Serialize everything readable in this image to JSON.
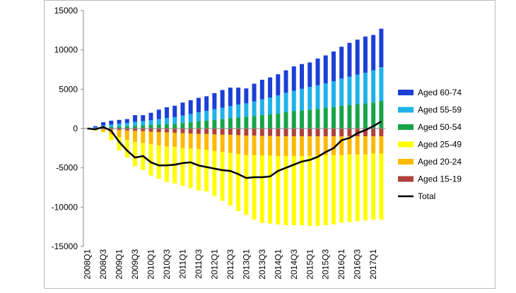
{
  "chart_data": {
    "type": "bar",
    "stacked": true,
    "categories": [
      "2008Q1",
      null,
      "2008Q3",
      null,
      "2009Q1",
      null,
      "2009Q3",
      null,
      "2010Q1",
      null,
      "2010Q3",
      null,
      "2011Q1",
      null,
      "2011Q3",
      null,
      "2012Q1",
      null,
      "2012Q3",
      null,
      "2013Q1",
      null,
      "2013Q3",
      null,
      "2014Q1",
      null,
      "2014Q3",
      null,
      "2015Q1",
      null,
      "2015Q3",
      null,
      "2016Q1",
      null,
      "2016Q3",
      null,
      "2017Q1",
      null
    ],
    "ylim": [
      -15000,
      15000
    ],
    "yticks": [
      -15000,
      -10000,
      -5000,
      0,
      5000,
      10000,
      15000
    ],
    "legend": "right",
    "series": [
      {
        "name": "Aged 60-74",
        "color": "#1c3fd6",
        "values": [
          0,
          150,
          400,
          500,
          500,
          500,
          850,
          750,
          950,
          1200,
          1350,
          1450,
          1650,
          1750,
          1850,
          1850,
          2050,
          2250,
          2350,
          2150,
          1900,
          2250,
          2500,
          2550,
          2700,
          2850,
          3100,
          3150,
          3100,
          3400,
          3550,
          3800,
          4050,
          4300,
          4450,
          4600,
          4500,
          4900
        ]
      },
      {
        "name": "Aged 55-59",
        "color": "#1fb2ea",
        "values": [
          0,
          100,
          250,
          300,
          350,
          400,
          500,
          550,
          600,
          700,
          800,
          850,
          950,
          1050,
          1150,
          1250,
          1350,
          1450,
          1550,
          1650,
          1700,
          1850,
          2000,
          2150,
          2300,
          2450,
          2600,
          2750,
          2900,
          3000,
          3150,
          3300,
          3450,
          3600,
          3750,
          3900,
          4100,
          4300
        ]
      },
      {
        "name": "Aged 50-54",
        "color": "#17a449",
        "values": [
          0,
          50,
          150,
          200,
          250,
          300,
          350,
          400,
          450,
          500,
          550,
          600,
          700,
          800,
          900,
          1000,
          1100,
          1200,
          1300,
          1400,
          1500,
          1600,
          1700,
          1800,
          1900,
          2100,
          2200,
          2300,
          2400,
          2500,
          2600,
          2700,
          2900,
          3000,
          3100,
          3200,
          3300,
          3500
        ]
      },
      {
        "name": "Aged 25-49",
        "color": "#ffff00",
        "values": [
          0,
          -150,
          -100,
          -750,
          -1700,
          -2250,
          -3100,
          -3450,
          -4000,
          -4250,
          -4500,
          -4650,
          -4800,
          -5050,
          -5300,
          -5300,
          -5750,
          -6200,
          -6700,
          -7250,
          -7600,
          -8200,
          -8550,
          -8650,
          -8700,
          -8800,
          -8800,
          -8800,
          -8900,
          -9000,
          -8900,
          -8800,
          -8600,
          -8600,
          -8500,
          -8400,
          -8400,
          -8400
        ]
      },
      {
        "name": "Aged 20-24",
        "color": "#ffb900",
        "values": [
          0,
          -100,
          -300,
          -600,
          -900,
          -1200,
          -1400,
          -1500,
          -1600,
          -1700,
          -1800,
          -1800,
          -1900,
          -1900,
          -1900,
          -2000,
          -2100,
          -2200,
          -2300,
          -2400,
          -2500,
          -2500,
          -2500,
          -2500,
          -2500,
          -2500,
          -2500,
          -2500,
          -2500,
          -2400,
          -2400,
          -2400,
          -2400,
          -2300,
          -2300,
          -2300,
          -2200,
          -2200
        ]
      },
      {
        "name": "Aged 15-19",
        "color": "#b0403c",
        "values": [
          0,
          -50,
          -100,
          -150,
          -200,
          -250,
          -300,
          -350,
          -400,
          -450,
          -500,
          -550,
          -600,
          -650,
          -700,
          -700,
          -750,
          -800,
          -800,
          -850,
          -900,
          -900,
          -950,
          -950,
          -1000,
          -1000,
          -1000,
          -1000,
          -1000,
          -1000,
          -1000,
          -1000,
          -1000,
          -1000,
          -1000,
          -1000,
          -1000,
          -1000
        ]
      },
      {
        "name": "Total",
        "type": "line",
        "color": "#000000",
        "values": [
          0,
          -100,
          200,
          -300,
          -1700,
          -2800,
          -3700,
          -3500,
          -4300,
          -4700,
          -4700,
          -4600,
          -4400,
          -4300,
          -4700,
          -4900,
          -5100,
          -5300,
          -5400,
          -5800,
          -6300,
          -6200,
          -6200,
          -6100,
          -5400,
          -5000,
          -4600,
          -4200,
          -4000,
          -3600,
          -3000,
          -2500,
          -1500,
          -1200,
          -600,
          -200,
          300,
          900
        ]
      }
    ]
  }
}
